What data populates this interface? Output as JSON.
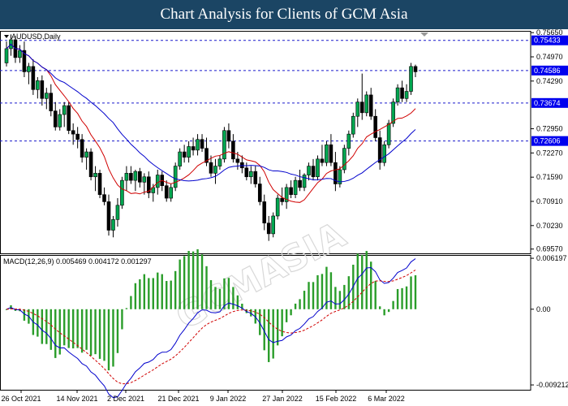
{
  "header": {
    "title": "Chart Analysis for Clients of GCM Asia"
  },
  "chart_data": {
    "type": "candlestick",
    "symbol": "AUDUSD,Daily",
    "price_axis": {
      "ticks": [
        "0.75650",
        "0.74970",
        "0.74290",
        "0.72950",
        "0.72270",
        "0.71590",
        "0.70910",
        "0.70230",
        "0.69570"
      ],
      "range": [
        0.6945,
        0.757
      ]
    },
    "levels": [
      {
        "label": "0.75433",
        "value": 0.75433
      },
      {
        "label": "0.74586",
        "value": 0.74586
      },
      {
        "label": "0.73674",
        "value": 0.73674
      },
      {
        "label": "0.72606",
        "value": 0.72606
      }
    ],
    "date_labels": [
      "26 Oct 2021",
      "14 Nov 2021",
      "2 Dec 2021",
      "21 Dec 2021",
      "9 Jan 2022",
      "27 Jan 2022",
      "15 Feb 2022",
      "6 Mar 2022"
    ],
    "candles": [
      [
        0.748,
        0.754,
        0.747,
        0.752
      ],
      [
        0.752,
        0.756,
        0.75,
        0.7545
      ],
      [
        0.7545,
        0.7555,
        0.748,
        0.7495
      ],
      [
        0.7495,
        0.753,
        0.748,
        0.7515
      ],
      [
        0.7515,
        0.754,
        0.744,
        0.7455
      ],
      [
        0.7455,
        0.748,
        0.742,
        0.747
      ],
      [
        0.747,
        0.749,
        0.739,
        0.7405
      ],
      [
        0.7405,
        0.744,
        0.738,
        0.743
      ],
      [
        0.743,
        0.7445,
        0.736,
        0.738
      ],
      [
        0.738,
        0.741,
        0.735,
        0.7395
      ],
      [
        0.7395,
        0.742,
        0.733,
        0.7345
      ],
      [
        0.7345,
        0.737,
        0.729,
        0.73
      ],
      [
        0.73,
        0.735,
        0.729,
        0.7335
      ],
      [
        0.7335,
        0.737,
        0.73,
        0.736
      ],
      [
        0.736,
        0.737,
        0.728,
        0.729
      ],
      [
        0.729,
        0.731,
        0.725,
        0.728
      ],
      [
        0.728,
        0.73,
        0.724,
        0.7265
      ],
      [
        0.7265,
        0.728,
        0.72,
        0.7215
      ],
      [
        0.7215,
        0.724,
        0.718,
        0.723
      ],
      [
        0.723,
        0.724,
        0.715,
        0.716
      ],
      [
        0.716,
        0.719,
        0.712,
        0.717
      ],
      [
        0.717,
        0.718,
        0.71,
        0.711
      ],
      [
        0.711,
        0.713,
        0.708,
        0.709
      ],
      [
        0.709,
        0.711,
        0.6995,
        0.701
      ],
      [
        0.701,
        0.705,
        0.699,
        0.704
      ],
      [
        0.704,
        0.71,
        0.702,
        0.708
      ],
      [
        0.708,
        0.716,
        0.707,
        0.715
      ],
      [
        0.715,
        0.719,
        0.712,
        0.717
      ],
      [
        0.717,
        0.719,
        0.714,
        0.715
      ],
      [
        0.715,
        0.718,
        0.712,
        0.7175
      ],
      [
        0.7175,
        0.7185,
        0.713,
        0.7145
      ],
      [
        0.7145,
        0.717,
        0.711,
        0.716
      ],
      [
        0.716,
        0.7175,
        0.71,
        0.7115
      ],
      [
        0.7115,
        0.714,
        0.709,
        0.713
      ],
      [
        0.713,
        0.718,
        0.711,
        0.7165
      ],
      [
        0.7165,
        0.7175,
        0.712,
        0.7135
      ],
      [
        0.7135,
        0.715,
        0.709,
        0.71
      ],
      [
        0.71,
        0.714,
        0.709,
        0.713
      ],
      [
        0.713,
        0.72,
        0.712,
        0.719
      ],
      [
        0.719,
        0.724,
        0.718,
        0.723
      ],
      [
        0.723,
        0.725,
        0.72,
        0.7215
      ],
      [
        0.7215,
        0.726,
        0.72,
        0.7245
      ],
      [
        0.7245,
        0.727,
        0.722,
        0.7235
      ],
      [
        0.7235,
        0.728,
        0.722,
        0.7265
      ],
      [
        0.7265,
        0.728,
        0.723,
        0.724
      ],
      [
        0.724,
        0.727,
        0.719,
        0.72
      ],
      [
        0.72,
        0.722,
        0.716,
        0.717
      ],
      [
        0.717,
        0.721,
        0.714,
        0.719
      ],
      [
        0.719,
        0.722,
        0.718,
        0.721
      ],
      [
        0.721,
        0.73,
        0.72,
        0.729
      ],
      [
        0.729,
        0.731,
        0.724,
        0.726
      ],
      [
        0.726,
        0.728,
        0.72,
        0.721
      ],
      [
        0.721,
        0.723,
        0.718,
        0.72
      ],
      [
        0.72,
        0.722,
        0.717,
        0.7185
      ],
      [
        0.7185,
        0.72,
        0.715,
        0.716
      ],
      [
        0.716,
        0.719,
        0.714,
        0.7175
      ],
      [
        0.7175,
        0.719,
        0.713,
        0.714
      ],
      [
        0.714,
        0.716,
        0.708,
        0.709
      ],
      [
        0.709,
        0.711,
        0.701,
        0.703
      ],
      [
        0.703,
        0.705,
        0.698,
        0.7
      ],
      [
        0.7,
        0.706,
        0.699,
        0.705
      ],
      [
        0.705,
        0.711,
        0.704,
        0.71
      ],
      [
        0.71,
        0.713,
        0.708,
        0.709
      ],
      [
        0.709,
        0.714,
        0.707,
        0.713
      ],
      [
        0.713,
        0.715,
        0.71,
        0.711
      ],
      [
        0.711,
        0.716,
        0.71,
        0.715
      ],
      [
        0.715,
        0.718,
        0.712,
        0.713
      ],
      [
        0.713,
        0.717,
        0.712,
        0.7165
      ],
      [
        0.7165,
        0.72,
        0.715,
        0.719
      ],
      [
        0.719,
        0.721,
        0.715,
        0.716
      ],
      [
        0.716,
        0.722,
        0.715,
        0.721
      ],
      [
        0.721,
        0.725,
        0.719,
        0.72
      ],
      [
        0.72,
        0.726,
        0.719,
        0.725
      ],
      [
        0.725,
        0.728,
        0.719,
        0.72
      ],
      [
        0.72,
        0.723,
        0.712,
        0.714
      ],
      [
        0.714,
        0.719,
        0.713,
        0.718
      ],
      [
        0.718,
        0.725,
        0.717,
        0.724
      ],
      [
        0.724,
        0.729,
        0.722,
        0.728
      ],
      [
        0.728,
        0.734,
        0.727,
        0.733
      ],
      [
        0.733,
        0.738,
        0.73,
        0.737
      ],
      [
        0.737,
        0.745,
        0.732,
        0.734
      ],
      [
        0.734,
        0.74,
        0.733,
        0.739
      ],
      [
        0.739,
        0.741,
        0.732,
        0.733
      ],
      [
        0.733,
        0.735,
        0.726,
        0.727
      ],
      [
        0.727,
        0.729,
        0.718,
        0.72
      ],
      [
        0.72,
        0.726,
        0.719,
        0.725
      ],
      [
        0.725,
        0.732,
        0.724,
        0.731
      ],
      [
        0.731,
        0.738,
        0.73,
        0.737
      ],
      [
        0.737,
        0.742,
        0.736,
        0.741
      ],
      [
        0.741,
        0.743,
        0.737,
        0.738
      ],
      [
        0.738,
        0.742,
        0.737,
        0.74
      ],
      [
        0.74,
        0.748,
        0.739,
        0.747
      ],
      [
        0.747,
        0.7475,
        0.744,
        0.7455
      ]
    ],
    "indicator": {
      "label": "MACD(12,26,9) 0.005469 0.004172 0.001297",
      "ticks": [
        "0.006197",
        "0.00",
        "-0.009212"
      ],
      "range": [
        -0.0098,
        0.0066
      ]
    }
  }
}
